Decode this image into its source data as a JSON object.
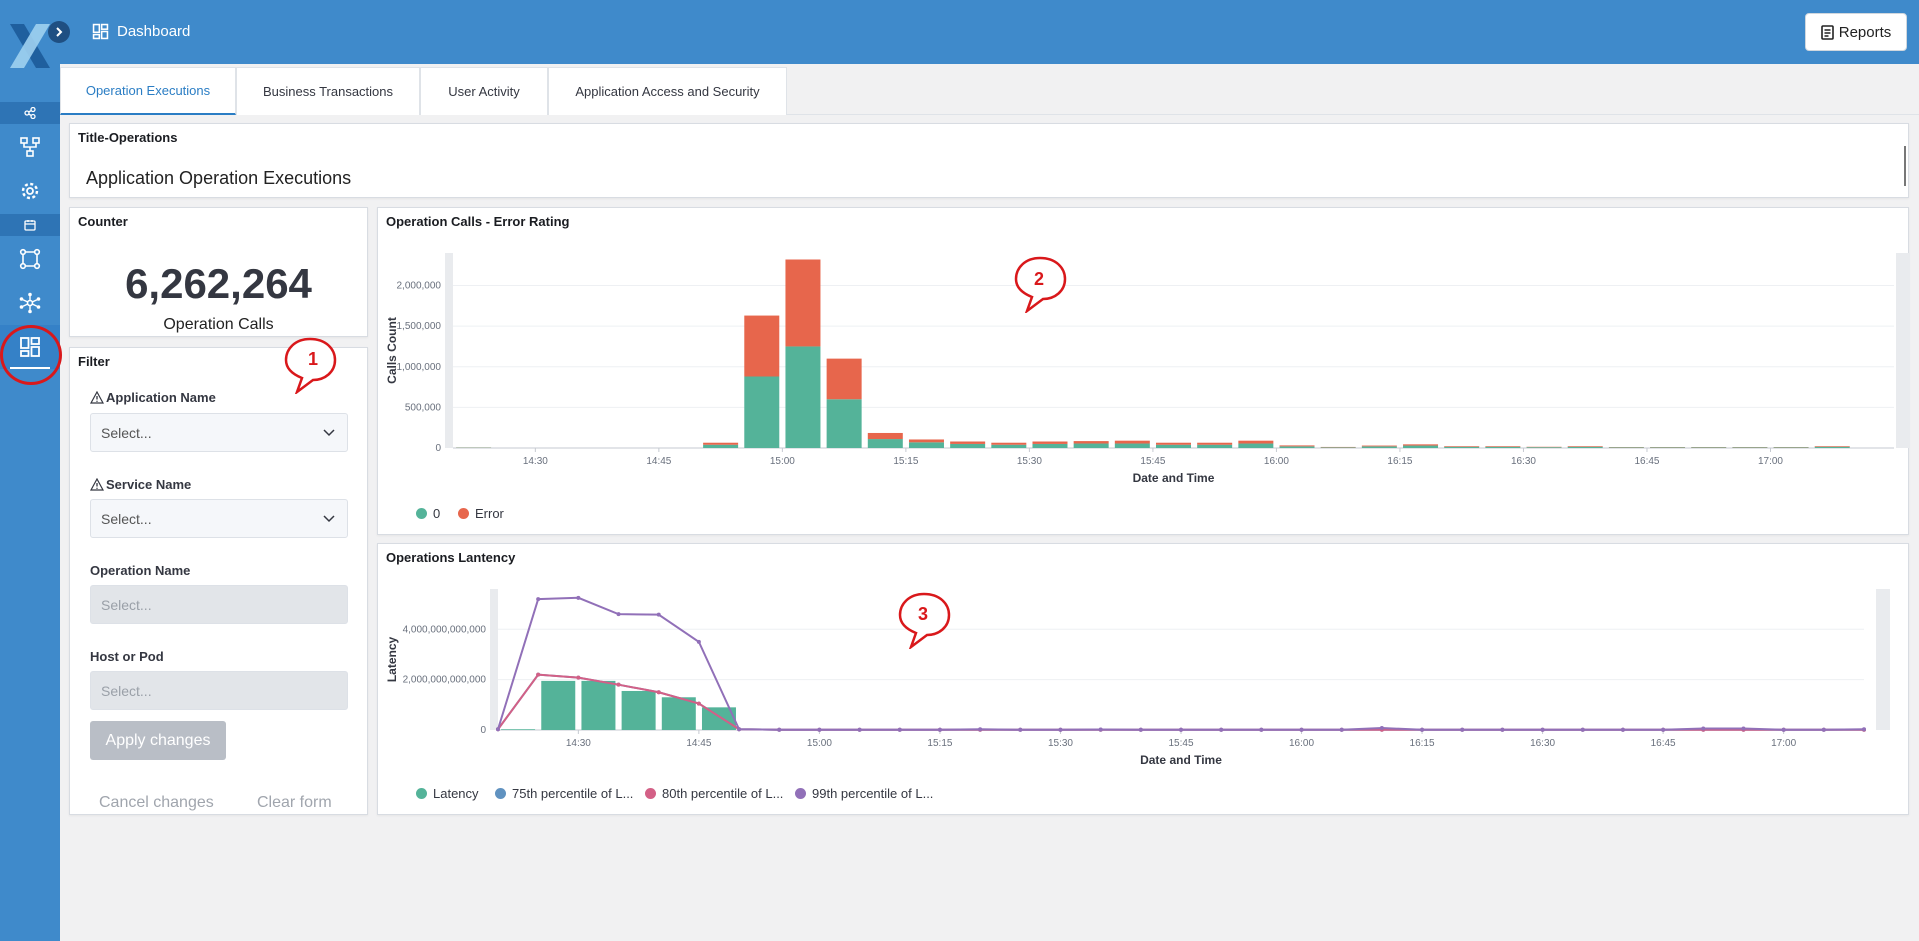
{
  "colors": {
    "accent": "#3f8acb",
    "ok": "#54b399",
    "error": "#e7664c",
    "p75": "#6092c0",
    "p80": "#d36086",
    "p99": "#9170b8",
    "annotation": "#d9181b"
  },
  "header": {
    "breadcrumb": "Dashboard",
    "breadcrumb_icon": "dashboard-icon",
    "reports_label": "Reports",
    "reports_icon": "report-icon"
  },
  "sidebar": {
    "icons": [
      "share-icon",
      "hierarchy-icon",
      "gear-icon",
      "calendar-icon",
      "network-icon",
      "cluster-icon",
      "dashboard-icon"
    ],
    "active": "dashboard-icon"
  },
  "tabs": [
    "Operation Executions",
    "Business Transactions",
    "User Activity",
    "Application Access and Security"
  ],
  "active_tab": "Operation Executions",
  "title_panel": {
    "label": "Title-Operations",
    "heading": "Application Operation Executions"
  },
  "counter": {
    "label": "Counter",
    "value": "6,262,264",
    "caption": "Operation Calls"
  },
  "filter": {
    "label": "Filter",
    "fields": [
      {
        "label": "Application Name",
        "placeholder": "Select...",
        "warning": true,
        "disabled": false
      },
      {
        "label": "Service Name",
        "placeholder": "Select...",
        "warning": true,
        "disabled": false
      },
      {
        "label": "Operation Name",
        "placeholder": "Select...",
        "warning": false,
        "disabled": true
      },
      {
        "label": "Host or Pod",
        "placeholder": "Select...",
        "warning": false,
        "disabled": true
      }
    ],
    "apply_label": "Apply changes",
    "cancel_label": "Cancel changes",
    "clear_label": "Clear form"
  },
  "annotations": [
    "1",
    "2",
    "3"
  ],
  "chart_data": [
    {
      "type": "bar",
      "title": "Operation Calls - Error Rating",
      "xlabel": "Date and Time",
      "ylabel": "Calls Count",
      "ylim": [
        0,
        2400000
      ],
      "yticks": [
        "0",
        "500,000",
        "1,000,000",
        "1,500,000",
        "2,000,000"
      ],
      "xticks": [
        "14:30",
        "14:45",
        "15:00",
        "15:15",
        "15:30",
        "15:45",
        "16:00",
        "16:15",
        "16:30",
        "16:45",
        "17:00"
      ],
      "x": [
        "14:20",
        "14:50",
        "14:55",
        "15:00",
        "15:05",
        "15:10",
        "15:15",
        "15:20",
        "15:25",
        "15:30",
        "15:35",
        "15:40",
        "15:45",
        "15:50",
        "15:55",
        "16:00",
        "16:05",
        "16:10",
        "16:15",
        "16:20",
        "16:25",
        "16:30",
        "16:35",
        "16:40",
        "16:45",
        "16:50",
        "16:55",
        "17:00",
        "17:05"
      ],
      "series": [
        {
          "name": "0",
          "values": [
            5000,
            40000,
            880000,
            1250000,
            600000,
            110000,
            70000,
            50000,
            40000,
            50000,
            55000,
            55000,
            40000,
            40000,
            55000,
            20000,
            8000,
            20000,
            30000,
            15000,
            15000,
            10000,
            15000,
            8000,
            8000,
            8000,
            8000,
            8000,
            15000
          ]
        },
        {
          "name": "Error",
          "values": [
            2000,
            25000,
            750000,
            1070000,
            500000,
            75000,
            35000,
            30000,
            25000,
            30000,
            30000,
            35000,
            25000,
            25000,
            35000,
            12000,
            5000,
            10000,
            15000,
            8000,
            8000,
            5000,
            8000,
            4000,
            4000,
            4000,
            4000,
            4000,
            8000
          ]
        }
      ],
      "legend": "bottom-left"
    },
    {
      "type": "bar",
      "title": "Operations Lantency",
      "xlabel": "Date and Time",
      "ylabel": "Latency",
      "ylim": [
        0,
        5600000000000
      ],
      "yticks": [
        "0",
        "2,000,000,000,000",
        "4,000,000,000,000"
      ],
      "xticks": [
        "14:30",
        "14:45",
        "15:00",
        "15:15",
        "15:30",
        "15:45",
        "16:00",
        "16:15",
        "16:30",
        "16:45",
        "17:00"
      ],
      "x": [
        "14:20",
        "14:25",
        "14:30",
        "14:35",
        "14:40",
        "14:45",
        "14:50",
        "14:55",
        "15:00",
        "15:05",
        "15:10",
        "15:15",
        "15:20",
        "15:25",
        "15:30",
        "15:35",
        "15:40",
        "15:45",
        "15:50",
        "15:55",
        "16:00",
        "16:05",
        "16:10",
        "16:15",
        "16:20",
        "16:25",
        "16:30",
        "16:35",
        "16:40",
        "16:45",
        "16:50",
        "16:55",
        "17:00",
        "17:05",
        "17:10"
      ],
      "series": [
        {
          "name": "Latency",
          "chart": "bar",
          "values": [
            30000000000,
            1950000000000,
            1950000000000,
            1550000000000,
            1300000000000,
            900000000000,
            0,
            0,
            0,
            0,
            0,
            0,
            0,
            0,
            0,
            0,
            0,
            0,
            0,
            0,
            0,
            0,
            0,
            0,
            0,
            0,
            0,
            0,
            0,
            0,
            0,
            0,
            0,
            0,
            0
          ]
        },
        {
          "name": "75th percentile of L...",
          "chart": "line",
          "values": [
            30000000000,
            2200000000000,
            2080000000000,
            1800000000000,
            1500000000000,
            1050000000000,
            30000000000,
            10000000000,
            10000000000,
            10000000000,
            10000000000,
            10000000000,
            10000000000,
            10000000000,
            10000000000,
            10000000000,
            10000000000,
            10000000000,
            10000000000,
            10000000000,
            10000000000,
            10000000000,
            10000000000,
            10000000000,
            10000000000,
            10000000000,
            10000000000,
            10000000000,
            10000000000,
            10000000000,
            10000000000,
            10000000000,
            10000000000,
            10000000000,
            10000000000
          ]
        },
        {
          "name": "80th percentile of L...",
          "chart": "line",
          "values": [
            30000000000,
            2200000000000,
            2080000000000,
            1800000000000,
            1500000000000,
            1050000000000,
            30000000000,
            10000000000,
            10000000000,
            10000000000,
            10000000000,
            10000000000,
            10000000000,
            10000000000,
            10000000000,
            10000000000,
            10000000000,
            10000000000,
            10000000000,
            10000000000,
            10000000000,
            10000000000,
            10000000000,
            10000000000,
            10000000000,
            10000000000,
            10000000000,
            10000000000,
            10000000000,
            10000000000,
            10000000000,
            10000000000,
            10000000000,
            10000000000,
            10000000000
          ]
        },
        {
          "name": "99th percentile of L...",
          "chart": "line",
          "values": [
            30000000000,
            5200000000000,
            5250000000000,
            4600000000000,
            4580000000000,
            3500000000000,
            30000000000,
            10000000000,
            10000000000,
            10000000000,
            10000000000,
            10000000000,
            30000000000,
            10000000000,
            10000000000,
            20000000000,
            10000000000,
            10000000000,
            10000000000,
            10000000000,
            10000000000,
            10000000000,
            80000000000,
            10000000000,
            10000000000,
            10000000000,
            10000000000,
            10000000000,
            10000000000,
            10000000000,
            60000000000,
            60000000000,
            10000000000,
            10000000000,
            30000000000
          ]
        }
      ],
      "legend": "bottom-left"
    }
  ]
}
